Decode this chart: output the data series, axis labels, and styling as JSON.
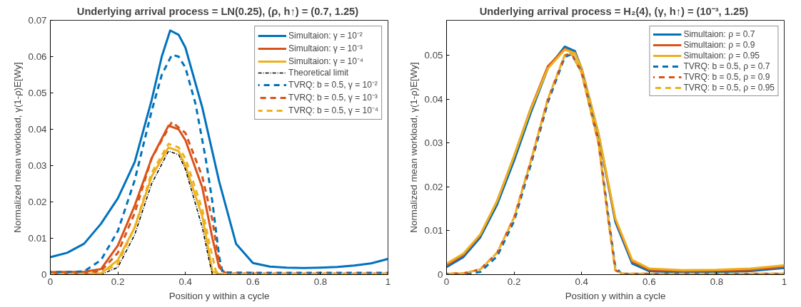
{
  "chart_data": [
    {
      "type": "line",
      "title": "Underlying arrival process = LN(0.25),  (ρ, h↑) = (0.7, 1.25)",
      "xlabel": "Position y within a cycle",
      "ylabel": "Normalized mean workload, γ(1-ρ)E[Wy]",
      "xlim": [
        0,
        1
      ],
      "ylim": [
        0,
        0.07
      ],
      "xticks": [
        0,
        0.2,
        0.4,
        0.6,
        0.8,
        1
      ],
      "yticks": [
        0,
        0.01,
        0.02,
        0.03,
        0.04,
        0.05,
        0.06,
        0.07
      ],
      "grid": false,
      "legend": "top right",
      "series": [
        {
          "name": "Simultaion: γ = 10⁻²",
          "color": "#0072bd",
          "line_style": "solid",
          "x": [
            0,
            0.05,
            0.1,
            0.15,
            0.2,
            0.25,
            0.3,
            0.33,
            0.355,
            0.38,
            0.4,
            0.45,
            0.5,
            0.55,
            0.6,
            0.65,
            0.7,
            0.75,
            0.8,
            0.85,
            0.9,
            0.95,
            1
          ],
          "values": [
            0.0048,
            0.006,
            0.0085,
            0.014,
            0.021,
            0.031,
            0.048,
            0.06,
            0.0672,
            0.066,
            0.0625,
            0.046,
            0.0256,
            0.0085,
            0.0032,
            0.0022,
            0.0019,
            0.0018,
            0.0019,
            0.0021,
            0.0025,
            0.0031,
            0.0043
          ]
        },
        {
          "name": "Simultaion: γ = 10⁻³",
          "color": "#d95319",
          "line_style": "solid",
          "x": [
            0,
            0.1,
            0.15,
            0.2,
            0.25,
            0.3,
            0.35,
            0.38,
            0.4,
            0.45,
            0.48,
            0.5,
            0.52,
            0.6,
            1
          ],
          "values": [
            0.0007,
            0.0008,
            0.0015,
            0.008,
            0.019,
            0.032,
            0.041,
            0.04,
            0.037,
            0.024,
            0.01,
            0.002,
            0.0003,
            0.0002,
            0.0002
          ]
        },
        {
          "name": "Simultaion: γ = 10⁻⁴",
          "color": "#edb120",
          "line_style": "solid",
          "x": [
            0,
            0.15,
            0.2,
            0.25,
            0.3,
            0.35,
            0.38,
            0.4,
            0.45,
            0.47,
            0.48,
            0.5,
            1
          ],
          "values": [
            0.0002,
            0.0003,
            0.004,
            0.013,
            0.027,
            0.035,
            0.034,
            0.03,
            0.016,
            0.006,
            0.0008,
            0.0002,
            0.0002
          ]
        },
        {
          "name": "Theoretical limit",
          "color": "#000000",
          "line_style": "dotted",
          "x": [
            0,
            0.15,
            0.2,
            0.25,
            0.3,
            0.35,
            0.38,
            0.4,
            0.45,
            0.47,
            0.48,
            1
          ],
          "values": [
            0,
            0,
            0.002,
            0.011,
            0.025,
            0.034,
            0.033,
            0.029,
            0.013,
            0.004,
            0,
            0
          ]
        },
        {
          "name": "TVRQ: b = 0.5, γ = 10⁻²",
          "color": "#0072bd",
          "line_style": "dashed",
          "x": [
            0,
            0.05,
            0.1,
            0.15,
            0.2,
            0.25,
            0.3,
            0.33,
            0.36,
            0.38,
            0.4,
            0.43,
            0.46,
            0.48,
            0.5,
            0.51,
            0.6,
            0.8,
            1
          ],
          "values": [
            0.0007,
            0.0007,
            0.0009,
            0.004,
            0.012,
            0.026,
            0.045,
            0.055,
            0.0605,
            0.06,
            0.057,
            0.047,
            0.032,
            0.02,
            0.005,
            0.0006,
            0.0005,
            0.0005,
            0.0005
          ]
        },
        {
          "name": "TVRQ: b = 0.5, γ = 10⁻³",
          "color": "#d95319",
          "line_style": "dashed",
          "x": [
            0,
            0.1,
            0.15,
            0.2,
            0.25,
            0.3,
            0.36,
            0.4,
            0.45,
            0.48,
            0.5,
            0.51,
            1
          ],
          "values": [
            0.0003,
            0.0004,
            0.001,
            0.006,
            0.017,
            0.032,
            0.042,
            0.039,
            0.027,
            0.015,
            0.003,
            0.0003,
            0.0003
          ]
        },
        {
          "name": "TVRQ: b = 0.5, γ = 10⁻⁴",
          "color": "#edb120",
          "line_style": "dashed",
          "x": [
            0,
            0.15,
            0.2,
            0.25,
            0.3,
            0.35,
            0.38,
            0.4,
            0.45,
            0.47,
            0.49,
            0.5,
            1
          ],
          "values": [
            0.0001,
            0.0003,
            0.003,
            0.013,
            0.028,
            0.036,
            0.035,
            0.032,
            0.018,
            0.009,
            0.001,
            0.0002,
            0.0002
          ]
        }
      ]
    },
    {
      "type": "line",
      "title": "Underlying arrival process = H₂(4),  (γ, h↑) = (10⁻³, 1.25)",
      "xlabel": "Position y within a cycle",
      "ylabel": "Normalized mean workload, γ(1-ρ)E[Wy]",
      "xlim": [
        0,
        1
      ],
      "ylim": [
        0,
        0.058
      ],
      "xticks": [
        0,
        0.2,
        0.4,
        0.6,
        0.8,
        1
      ],
      "yticks": [
        0,
        0.01,
        0.02,
        0.03,
        0.04,
        0.05
      ],
      "grid": false,
      "legend": "top right",
      "series": [
        {
          "name": "Simultaion: ρ = 0.7",
          "color": "#0072bd",
          "line_style": "solid",
          "x": [
            0,
            0.05,
            0.1,
            0.15,
            0.2,
            0.25,
            0.3,
            0.35,
            0.38,
            0.4,
            0.45,
            0.5,
            0.55,
            0.6,
            0.7,
            0.8,
            0.9,
            1
          ],
          "values": [
            0.0017,
            0.004,
            0.0085,
            0.016,
            0.026,
            0.037,
            0.047,
            0.052,
            0.051,
            0.047,
            0.032,
            0.012,
            0.0025,
            0.0008,
            0.0005,
            0.0006,
            0.0008,
            0.0015
          ]
        },
        {
          "name": "Simultaion: ρ = 0.9",
          "color": "#d95319",
          "line_style": "solid",
          "x": [
            0,
            0.05,
            0.1,
            0.15,
            0.2,
            0.25,
            0.3,
            0.35,
            0.38,
            0.4,
            0.45,
            0.5,
            0.55,
            0.6,
            0.7,
            0.8,
            0.9,
            1
          ],
          "values": [
            0.0021,
            0.0045,
            0.009,
            0.0168,
            0.027,
            0.038,
            0.0475,
            0.0515,
            0.0505,
            0.047,
            0.032,
            0.0125,
            0.003,
            0.0011,
            0.0008,
            0.0009,
            0.0011,
            0.0018
          ]
        },
        {
          "name": "Simultaion: ρ = 0.95",
          "color": "#edb120",
          "line_style": "solid",
          "x": [
            0,
            0.05,
            0.1,
            0.15,
            0.2,
            0.25,
            0.3,
            0.35,
            0.38,
            0.4,
            0.45,
            0.5,
            0.55,
            0.6,
            0.7,
            0.8,
            0.9,
            1
          ],
          "values": [
            0.0025,
            0.0048,
            0.0092,
            0.0168,
            0.027,
            0.0378,
            0.047,
            0.0513,
            0.0505,
            0.047,
            0.0323,
            0.0128,
            0.0033,
            0.0014,
            0.001,
            0.0011,
            0.0014,
            0.0021
          ]
        },
        {
          "name": "TVRQ: b = 0.5, ρ = 0.7",
          "color": "#0072bd",
          "line_style": "dashed",
          "x": [
            0,
            0.05,
            0.1,
            0.15,
            0.2,
            0.25,
            0.3,
            0.35,
            0.37,
            0.4,
            0.45,
            0.48,
            0.5,
            0.52,
            1
          ],
          "values": [
            0.0001,
            0.0001,
            0.0006,
            0.0042,
            0.0122,
            0.0252,
            0.0393,
            0.0496,
            0.0503,
            0.0463,
            0.0305,
            0.0128,
            0.0016,
            0.0001,
            0.0001
          ]
        },
        {
          "name": "TVRQ: b = 0.5, ρ = 0.9",
          "color": "#d95319",
          "line_style": "dashed",
          "x": [
            0,
            0.05,
            0.1,
            0.15,
            0.2,
            0.25,
            0.3,
            0.35,
            0.37,
            0.4,
            0.45,
            0.48,
            0.5,
            0.52,
            1
          ],
          "values": [
            0.0002,
            0.0003,
            0.0012,
            0.005,
            0.013,
            0.026,
            0.04,
            0.05,
            0.0505,
            0.046,
            0.03,
            0.012,
            0.001,
            0.0002,
            0.0002
          ]
        },
        {
          "name": "TVRQ: b = 0.5, ρ = 0.95",
          "color": "#edb120",
          "line_style": "dashed",
          "x": [
            0,
            0.05,
            0.1,
            0.15,
            0.2,
            0.25,
            0.3,
            0.35,
            0.37,
            0.4,
            0.45,
            0.48,
            0.5,
            0.52,
            1
          ],
          "values": [
            0.0002,
            0.0003,
            0.0012,
            0.005,
            0.013,
            0.026,
            0.04,
            0.05,
            0.0505,
            0.046,
            0.03,
            0.012,
            0.001,
            0.0002,
            0.0002
          ]
        }
      ]
    }
  ]
}
